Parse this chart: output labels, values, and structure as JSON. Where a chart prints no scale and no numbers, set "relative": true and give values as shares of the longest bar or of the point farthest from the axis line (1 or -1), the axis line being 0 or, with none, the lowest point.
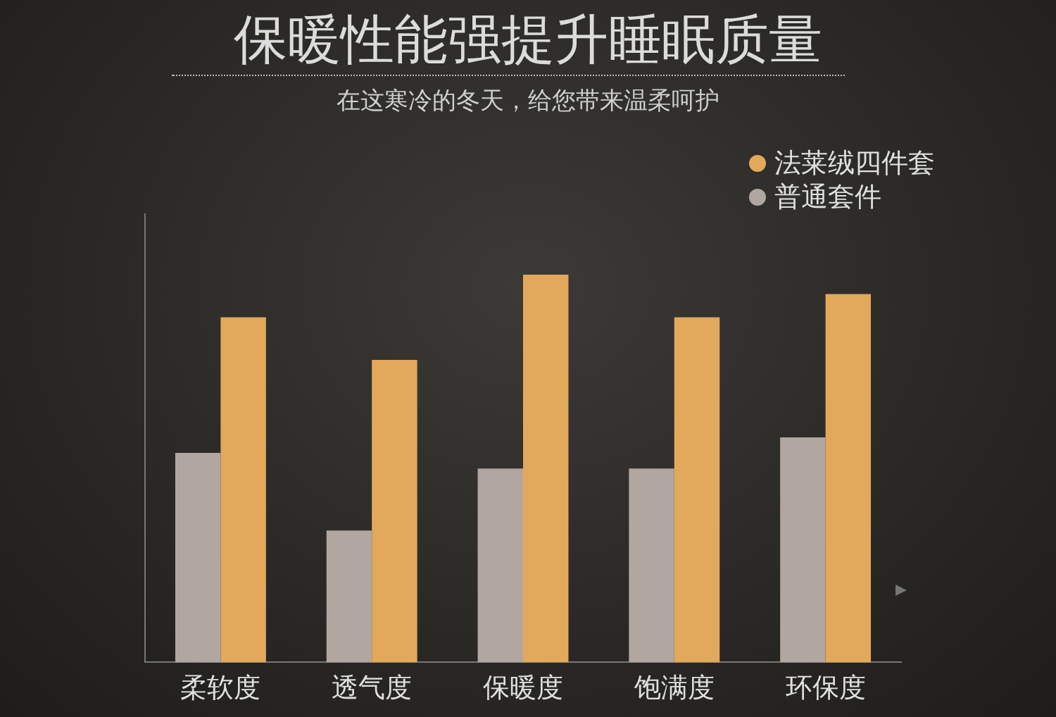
{
  "chart_data": {
    "type": "bar",
    "title": "保暖性能强提升睡眠质量",
    "subtitle": "在这寒冷的冬天，给您带来温柔呵护",
    "relative": true,
    "legend": "top right",
    "grid": false,
    "categories": [
      "柔软度",
      "透气度",
      "保暖度",
      "饱满度",
      "环保度"
    ],
    "series": [
      {
        "name": "普通套件",
        "color": "#b2a6a0",
        "values": [
          0.54,
          0.34,
          0.5,
          0.5,
          0.58
        ]
      },
      {
        "name": "法莱绒四件套",
        "color": "#e2a95c",
        "values": [
          0.89,
          0.78,
          1,
          0.89,
          0.95
        ]
      }
    ]
  }
}
